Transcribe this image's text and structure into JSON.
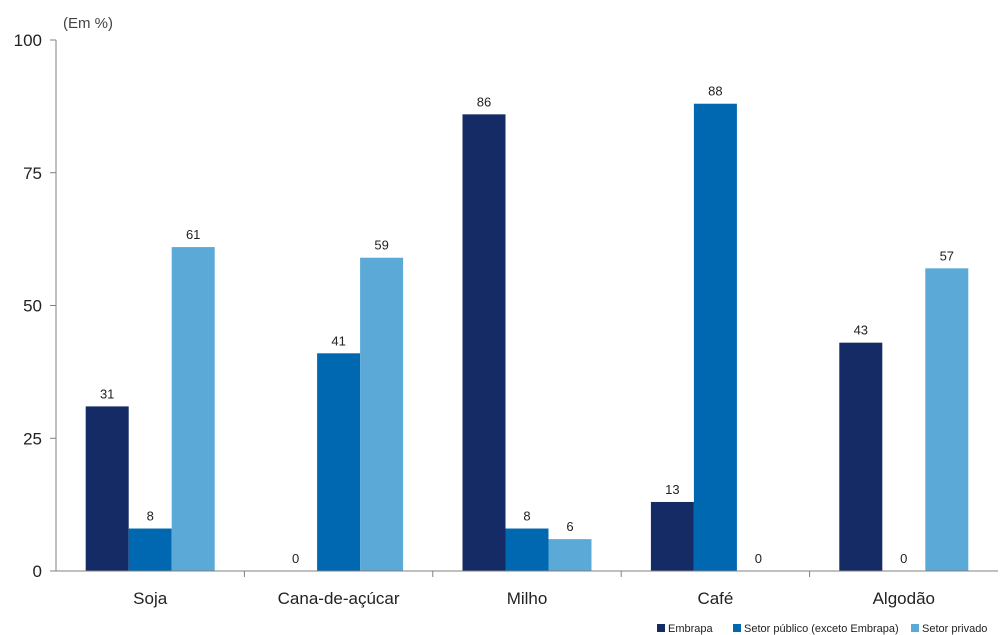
{
  "chart_data": {
    "type": "bar",
    "title": "",
    "unit_label": "(Em %)",
    "xlabel": "",
    "ylabel": "",
    "ylim": [
      0,
      100
    ],
    "yticks": [
      0,
      25,
      50,
      75,
      100
    ],
    "grid": false,
    "legend_position": "bottom-right",
    "categories": [
      "Soja",
      "Cana-de-açúcar",
      "Milho",
      "Café",
      "Algodão"
    ],
    "series": [
      {
        "name": "Embrapa",
        "color": "#152b66",
        "values": [
          31,
          0,
          86,
          13,
          43
        ]
      },
      {
        "name": "Setor público (exceto Embrapa)",
        "color": "#0068b0",
        "values": [
          8,
          41,
          8,
          88,
          0
        ]
      },
      {
        "name": "Setor privado",
        "color": "#5aa9d6",
        "values": [
          61,
          59,
          6,
          0,
          57
        ]
      }
    ]
  }
}
